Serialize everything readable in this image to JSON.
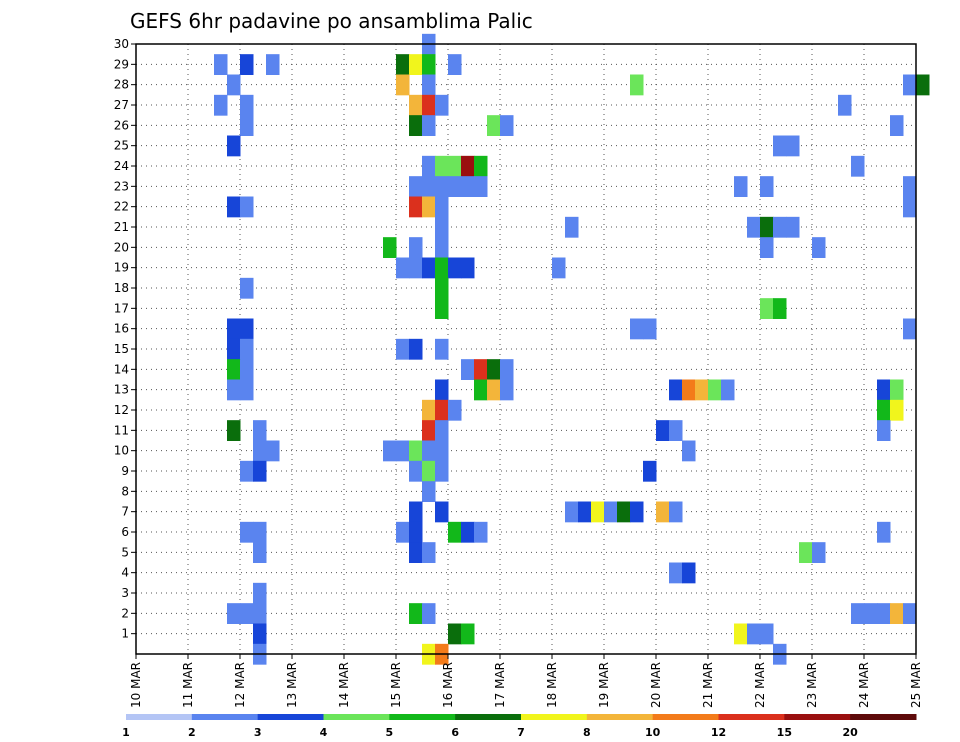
{
  "chart_data": {
    "type": "heatmap",
    "title": "GEFS 6hr padavine po ansamblima Palic",
    "xlabel": "",
    "ylabel": "",
    "x_range": [
      "10 MAR 00Z",
      "25 MAR 00Z"
    ],
    "x_step": "6hr",
    "y_range": [
      0,
      30
    ],
    "grid": true,
    "x_ticks": [
      "10 MAR",
      "11 MAR",
      "12 MAR",
      "13 MAR",
      "14 MAR",
      "15 MAR",
      "16 MAR",
      "17 MAR",
      "18 MAR",
      "19 MAR",
      "20 MAR",
      "21 MAR",
      "22 MAR",
      "23 MAR",
      "24 MAR",
      "25 MAR"
    ],
    "y_ticks": [
      "1",
      "2",
      "3",
      "4",
      "5",
      "6",
      "7",
      "8",
      "9",
      "10",
      "11",
      "12",
      "13",
      "14",
      "15",
      "16",
      "17",
      "18",
      "19",
      "20",
      "21",
      "22",
      "23",
      "24",
      "25",
      "26",
      "27",
      "28",
      "29",
      "30"
    ],
    "legend": {
      "placement": "bottom",
      "labels": [
        "1",
        "2",
        "3",
        "4",
        "5",
        "6",
        "7",
        "8",
        "10",
        "12",
        "15",
        "20"
      ],
      "colors": [
        "#b4c5f5",
        "#5a84ef",
        "#1745d8",
        "#6be55a",
        "#12b81a",
        "#0a6e0c",
        "#f1f51c",
        "#f3b53a",
        "#f37b1a",
        "#db301d",
        "#9a0f0f",
        "#5e0b0b"
      ]
    },
    "cells": [
      [
        5.5,
        30,
        1
      ],
      [
        1.5,
        29,
        1
      ],
      [
        2,
        29,
        2
      ],
      [
        2.5,
        29,
        1
      ],
      [
        5,
        29,
        5
      ],
      [
        5.25,
        29,
        6
      ],
      [
        5.5,
        29,
        4
      ],
      [
        6,
        29,
        1
      ],
      [
        1.75,
        28,
        1
      ],
      [
        5,
        28,
        7
      ],
      [
        5.5,
        28,
        1
      ],
      [
        9.5,
        28,
        3
      ],
      [
        14.75,
        28,
        1
      ],
      [
        15,
        28,
        5
      ],
      [
        1.5,
        27,
        1
      ],
      [
        2,
        27,
        1
      ],
      [
        5.25,
        27,
        7
      ],
      [
        5.5,
        27,
        9
      ],
      [
        5.75,
        27,
        1
      ],
      [
        13.5,
        27,
        1
      ],
      [
        2,
        26,
        1
      ],
      [
        5.25,
        26,
        5
      ],
      [
        5.5,
        26,
        1
      ],
      [
        6.75,
        26,
        3
      ],
      [
        7,
        26,
        1
      ],
      [
        14.5,
        26,
        1
      ],
      [
        1.75,
        25,
        2
      ],
      [
        12.25,
        25,
        1
      ],
      [
        12.5,
        25,
        1
      ],
      [
        5.5,
        24,
        1
      ],
      [
        5.75,
        24,
        3
      ],
      [
        6,
        24,
        3
      ],
      [
        6.25,
        24,
        10
      ],
      [
        6.5,
        24,
        4
      ],
      [
        13.75,
        24,
        1
      ],
      [
        5.25,
        23,
        1
      ],
      [
        5.5,
        23,
        1
      ],
      [
        5.75,
        23,
        1
      ],
      [
        6,
        23,
        1
      ],
      [
        6.25,
        23,
        1
      ],
      [
        6.5,
        23,
        1
      ],
      [
        11.5,
        23,
        1
      ],
      [
        12,
        23,
        1
      ],
      [
        14.75,
        23,
        1
      ],
      [
        1.75,
        22,
        2
      ],
      [
        2,
        22,
        1
      ],
      [
        5.25,
        22,
        9
      ],
      [
        5.5,
        22,
        7
      ],
      [
        5.75,
        22,
        1
      ],
      [
        14.75,
        22,
        1
      ],
      [
        5.75,
        21,
        1
      ],
      [
        8.25,
        21,
        1
      ],
      [
        11.75,
        21,
        1
      ],
      [
        12,
        21,
        5
      ],
      [
        12.25,
        21,
        1
      ],
      [
        12.5,
        21,
        1
      ],
      [
        4.75,
        20,
        4
      ],
      [
        5.25,
        20,
        1
      ],
      [
        5.75,
        20,
        1
      ],
      [
        12,
        20,
        1
      ],
      [
        13,
        20,
        1
      ],
      [
        5,
        19,
        1
      ],
      [
        5.25,
        19,
        1
      ],
      [
        5.5,
        19,
        2
      ],
      [
        5.75,
        19,
        4
      ],
      [
        6,
        19,
        2
      ],
      [
        6.25,
        19,
        2
      ],
      [
        8,
        19,
        1
      ],
      [
        2,
        18,
        1
      ],
      [
        5.75,
        18,
        4
      ],
      [
        5.75,
        17,
        4
      ],
      [
        12,
        17,
        3
      ],
      [
        12.25,
        17,
        4
      ],
      [
        1.75,
        16,
        2
      ],
      [
        2,
        16,
        2
      ],
      [
        9.5,
        16,
        1
      ],
      [
        9.75,
        16,
        1
      ],
      [
        14.75,
        16,
        1
      ],
      [
        1.75,
        15,
        2
      ],
      [
        2,
        15,
        1
      ],
      [
        5,
        15,
        1
      ],
      [
        5.25,
        15,
        2
      ],
      [
        5.75,
        15,
        1
      ],
      [
        1.75,
        14,
        4
      ],
      [
        2,
        14,
        1
      ],
      [
        6.25,
        14,
        1
      ],
      [
        6.5,
        14,
        9
      ],
      [
        6.75,
        14,
        5
      ],
      [
        7,
        14,
        1
      ],
      [
        1.75,
        13,
        1
      ],
      [
        2,
        13,
        1
      ],
      [
        5.75,
        13,
        2
      ],
      [
        6.5,
        13,
        4
      ],
      [
        6.75,
        13,
        7
      ],
      [
        7,
        13,
        1
      ],
      [
        10.25,
        13,
        2
      ],
      [
        10.5,
        13,
        8
      ],
      [
        10.75,
        13,
        7
      ],
      [
        11,
        13,
        3
      ],
      [
        11.25,
        13,
        1
      ],
      [
        14.25,
        13,
        2
      ],
      [
        14.5,
        13,
        3
      ],
      [
        5.5,
        12,
        7
      ],
      [
        5.75,
        12,
        9
      ],
      [
        6,
        12,
        1
      ],
      [
        14.25,
        12,
        4
      ],
      [
        14.5,
        12,
        6
      ],
      [
        1.75,
        11,
        5
      ],
      [
        2.25,
        11,
        1
      ],
      [
        5.5,
        11,
        9
      ],
      [
        5.75,
        11,
        1
      ],
      [
        10,
        11,
        2
      ],
      [
        10.25,
        11,
        1
      ],
      [
        14.25,
        11,
        1
      ],
      [
        2.25,
        10,
        1
      ],
      [
        2.5,
        10,
        1
      ],
      [
        4.75,
        10,
        1
      ],
      [
        5,
        10,
        1
      ],
      [
        5.25,
        10,
        3
      ],
      [
        5.5,
        10,
        1
      ],
      [
        5.75,
        10,
        1
      ],
      [
        10.5,
        10,
        1
      ],
      [
        2,
        9,
        1
      ],
      [
        2.25,
        9,
        2
      ],
      [
        5.25,
        9,
        1
      ],
      [
        5.5,
        9,
        3
      ],
      [
        5.75,
        9,
        1
      ],
      [
        9.75,
        9,
        2
      ],
      [
        5.5,
        8,
        1
      ],
      [
        5.25,
        7,
        2
      ],
      [
        5.75,
        7,
        2
      ],
      [
        8.25,
        7,
        1
      ],
      [
        8.5,
        7,
        2
      ],
      [
        8.75,
        7,
        6
      ],
      [
        9,
        7,
        1
      ],
      [
        9.25,
        7,
        5
      ],
      [
        9.5,
        7,
        2
      ],
      [
        10,
        7,
        7
      ],
      [
        10.25,
        7,
        1
      ],
      [
        2,
        6,
        1
      ],
      [
        2.25,
        6,
        1
      ],
      [
        5,
        6,
        1
      ],
      [
        5.25,
        6,
        2
      ],
      [
        6,
        6,
        4
      ],
      [
        6.25,
        6,
        2
      ],
      [
        6.5,
        6,
        1
      ],
      [
        14.25,
        6,
        1
      ],
      [
        2.25,
        5,
        1
      ],
      [
        5.25,
        5,
        2
      ],
      [
        5.5,
        5,
        1
      ],
      [
        12.75,
        5,
        3
      ],
      [
        13,
        5,
        1
      ],
      [
        10.25,
        4,
        1
      ],
      [
        10.5,
        4,
        2
      ],
      [
        2.25,
        3,
        1
      ],
      [
        1.75,
        2,
        1
      ],
      [
        2,
        2,
        1
      ],
      [
        2.25,
        2,
        1
      ],
      [
        5.25,
        2,
        4
      ],
      [
        5.5,
        2,
        1
      ],
      [
        13.75,
        2,
        1
      ],
      [
        14,
        2,
        1
      ],
      [
        14.25,
        2,
        1
      ],
      [
        14.5,
        2,
        7
      ],
      [
        14.75,
        2,
        1
      ],
      [
        2.25,
        1,
        2
      ],
      [
        6,
        1,
        5
      ],
      [
        6.25,
        1,
        4
      ],
      [
        11.5,
        1,
        6
      ],
      [
        11.75,
        1,
        1
      ],
      [
        12,
        1,
        1
      ],
      [
        2.25,
        0,
        1
      ],
      [
        5.5,
        0,
        6
      ],
      [
        5.75,
        0,
        8
      ],
      [
        12.25,
        0,
        1
      ]
    ]
  }
}
